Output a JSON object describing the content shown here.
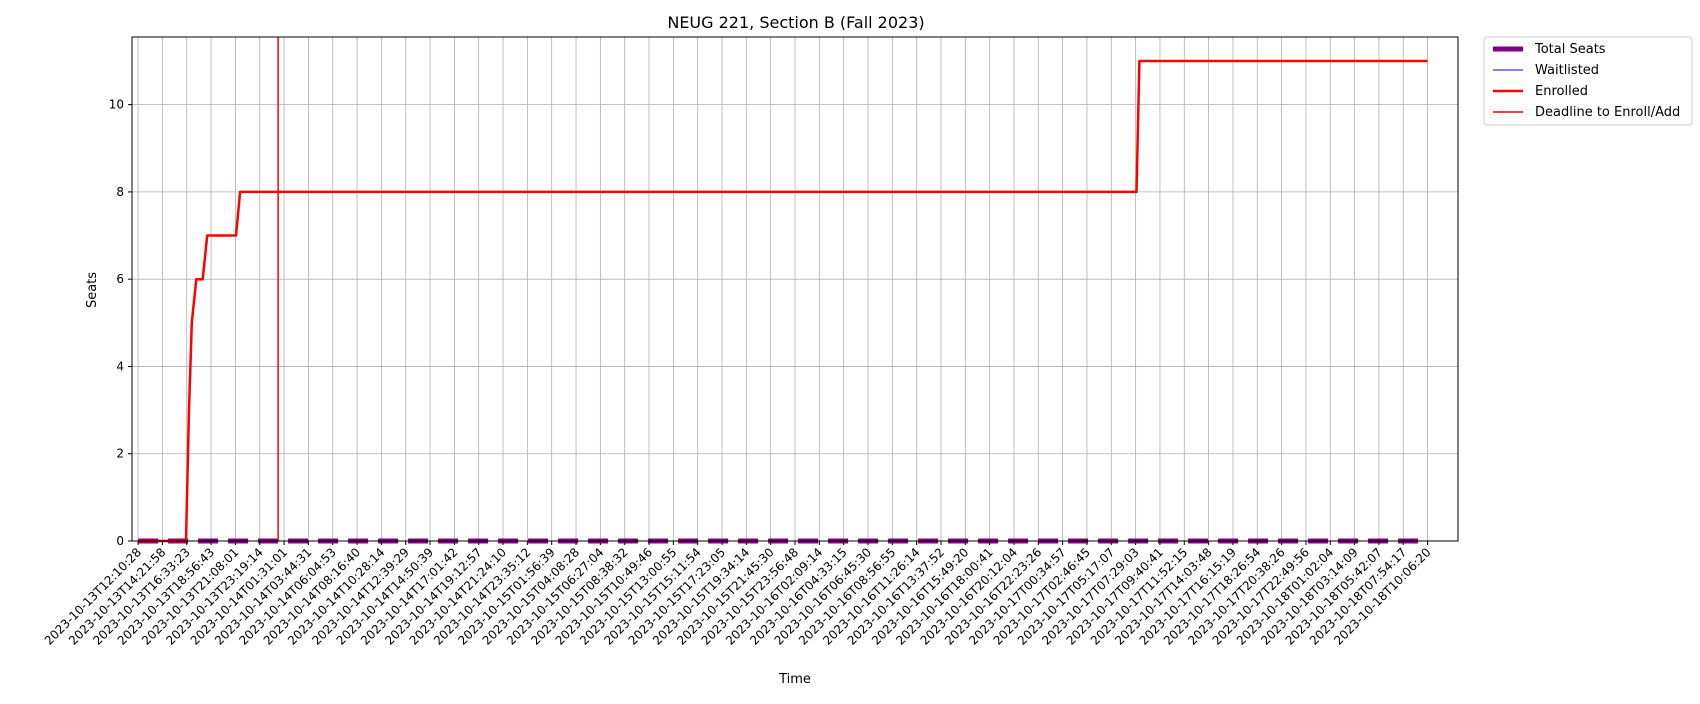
{
  "chart_data": {
    "type": "line",
    "title": "NEUG 221, Section B (Fall 2023)",
    "xlabel": "Time",
    "ylabel": "Seats",
    "ylim": [
      0,
      11.55
    ],
    "yticks": [
      0,
      2,
      4,
      6,
      8,
      10
    ],
    "grid": true,
    "legend_position": "outside-top-right",
    "x_categories": [
      "2023-10-13T12:10:28",
      "2023-10-13T14:21:58",
      "2023-10-13T16:33:23",
      "2023-10-13T18:56:43",
      "2023-10-13T21:08:01",
      "2023-10-13T23:19:14",
      "2023-10-14T01:31:01",
      "2023-10-14T03:44:31",
      "2023-10-14T06:04:53",
      "2023-10-14T08:16:40",
      "2023-10-14T10:28:14",
      "2023-10-14T12:39:29",
      "2023-10-14T14:50:39",
      "2023-10-14T17:01:42",
      "2023-10-14T19:12:57",
      "2023-10-14T21:24:10",
      "2023-10-14T23:35:12",
      "2023-10-15T01:56:39",
      "2023-10-15T04:08:28",
      "2023-10-15T06:27:04",
      "2023-10-15T08:38:32",
      "2023-10-15T10:49:46",
      "2023-10-15T13:00:55",
      "2023-10-15T15:11:54",
      "2023-10-15T17:23:05",
      "2023-10-15T19:34:14",
      "2023-10-15T21:45:30",
      "2023-10-15T23:56:48",
      "2023-10-16T02:09:14",
      "2023-10-16T04:33:15",
      "2023-10-16T06:45:30",
      "2023-10-16T08:56:55",
      "2023-10-16T11:26:14",
      "2023-10-16T13:37:52",
      "2023-10-16T15:49:20",
      "2023-10-16T18:00:41",
      "2023-10-16T20:12:04",
      "2023-10-16T22:23:26",
      "2023-10-17T00:34:57",
      "2023-10-17T02:46:45",
      "2023-10-17T05:17:07",
      "2023-10-17T07:29:03",
      "2023-10-17T09:40:41",
      "2023-10-17T11:52:15",
      "2023-10-17T14:03:48",
      "2023-10-17T16:15:19",
      "2023-10-17T18:26:54",
      "2023-10-17T20:38:26",
      "2023-10-17T22:49:56",
      "2023-10-18T01:02:04",
      "2023-10-18T03:14:09",
      "2023-10-18T05:42:07",
      "2023-10-18T07:54:17",
      "2023-10-18T10:06:20"
    ],
    "series": [
      {
        "name": "Total Seats",
        "color": "#800080",
        "style": "dashed-thick",
        "points": [
          [
            "2023-10-13T12:10:28",
            0
          ],
          [
            "2023-10-18T10:06:20",
            0
          ]
        ]
      },
      {
        "name": "Waitlisted",
        "color": "#0000ff",
        "style": "solid-thin",
        "points": [
          [
            "2023-10-13T12:10:28",
            0
          ],
          [
            "2023-10-18T10:06:20",
            0
          ]
        ]
      },
      {
        "name": "Enrolled",
        "color": "#ff0000",
        "style": "solid-thick",
        "points": [
          [
            "2023-10-13T12:10:28",
            0
          ],
          [
            "2023-10-13T16:33:23",
            0
          ],
          [
            "2023-10-13T16:50:00",
            3
          ],
          [
            "2023-10-13T17:05:00",
            5
          ],
          [
            "2023-10-13T17:30:00",
            6
          ],
          [
            "2023-10-13T18:05:00",
            6
          ],
          [
            "2023-10-13T18:30:00",
            7
          ],
          [
            "2023-10-13T21:08:01",
            7
          ],
          [
            "2023-10-13T21:30:00",
            8
          ],
          [
            "2023-10-17T07:29:03",
            8
          ],
          [
            "2023-10-17T07:45:00",
            11
          ],
          [
            "2023-10-18T10:06:20",
            11
          ]
        ]
      },
      {
        "name": "Deadline to Enroll/Add",
        "color": "#ff0000",
        "style": "vertical-line",
        "x": "2023-10-14T00:59:00"
      }
    ]
  }
}
